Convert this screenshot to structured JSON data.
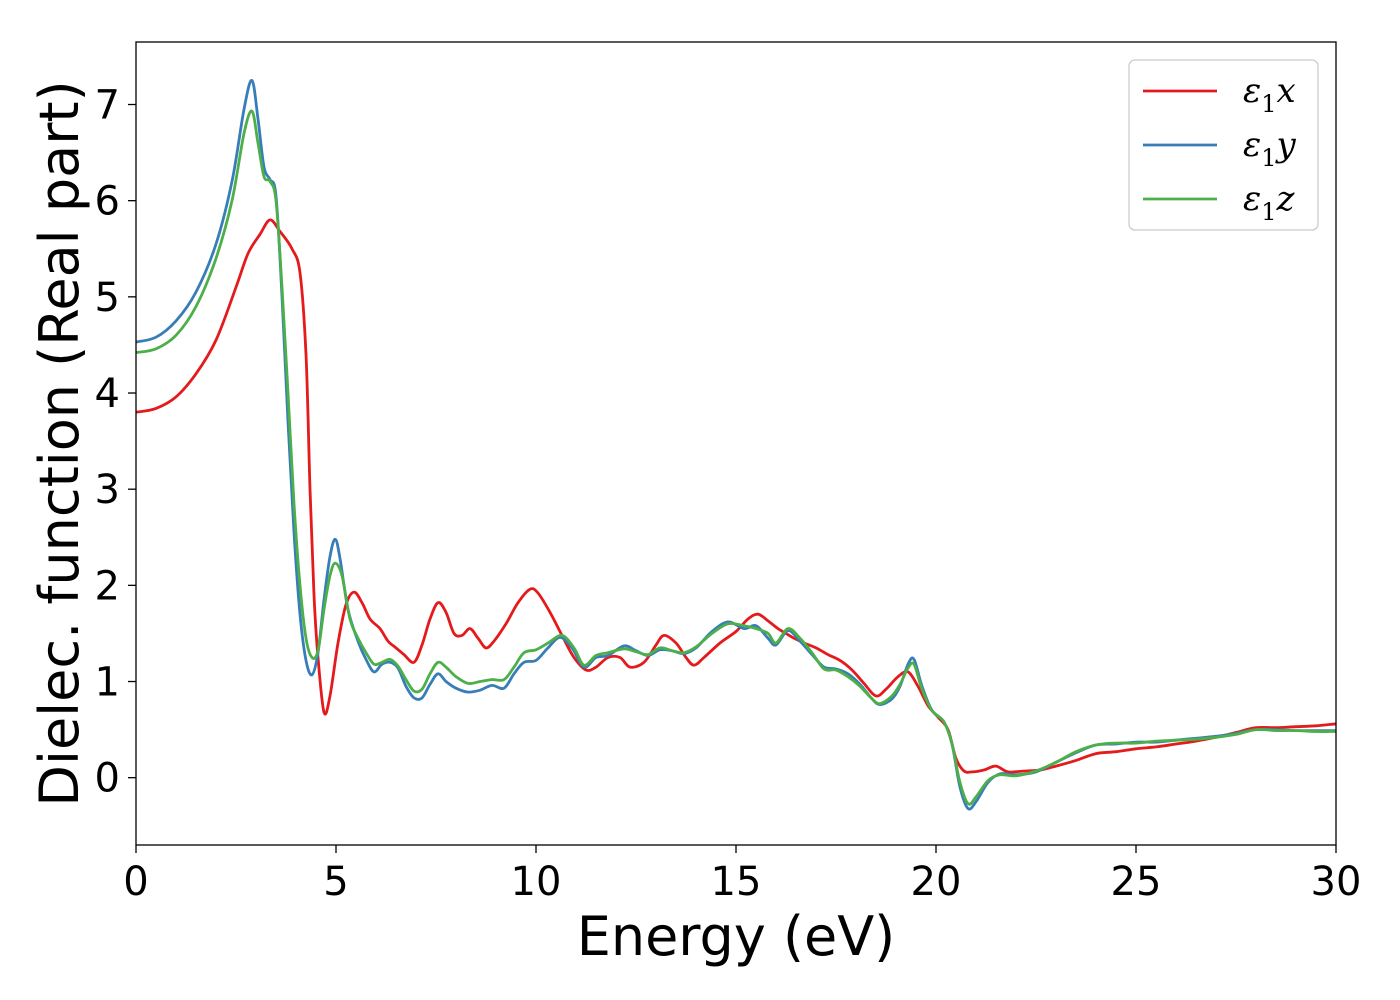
{
  "chart_data": {
    "type": "line",
    "xlabel": "Energy (eV)",
    "ylabel": "Dielec. function (Real part)",
    "xlim": [
      0,
      30
    ],
    "ylim": [
      -0.7,
      7.65
    ],
    "xticks": [
      0,
      5,
      10,
      15,
      20,
      25,
      30
    ],
    "yticks": [
      0,
      1,
      2,
      3,
      4,
      5,
      6,
      7
    ],
    "grid": false,
    "legend_position": "top-right",
    "series": [
      {
        "name": "ε1x",
        "legend": {
          "base": "ε",
          "sub": "1",
          "suffix": "x"
        },
        "color": "#e41a1c",
        "points": [
          [
            0,
            3.8
          ],
          [
            0.5,
            3.84
          ],
          [
            1,
            3.96
          ],
          [
            1.5,
            4.2
          ],
          [
            2,
            4.55
          ],
          [
            2.5,
            5.1
          ],
          [
            2.8,
            5.45
          ],
          [
            3.1,
            5.65
          ],
          [
            3.35,
            5.8
          ],
          [
            3.6,
            5.68
          ],
          [
            3.9,
            5.5
          ],
          [
            4.1,
            5.25
          ],
          [
            4.25,
            4.4
          ],
          [
            4.35,
            3.0
          ],
          [
            4.45,
            1.9
          ],
          [
            4.55,
            1.25
          ],
          [
            4.7,
            0.68
          ],
          [
            4.85,
            0.85
          ],
          [
            5.05,
            1.4
          ],
          [
            5.25,
            1.8
          ],
          [
            5.45,
            1.93
          ],
          [
            5.65,
            1.82
          ],
          [
            5.85,
            1.65
          ],
          [
            6.1,
            1.55
          ],
          [
            6.3,
            1.42
          ],
          [
            6.5,
            1.35
          ],
          [
            6.7,
            1.28
          ],
          [
            6.95,
            1.2
          ],
          [
            7.15,
            1.38
          ],
          [
            7.35,
            1.65
          ],
          [
            7.55,
            1.82
          ],
          [
            7.75,
            1.72
          ],
          [
            7.95,
            1.5
          ],
          [
            8.15,
            1.48
          ],
          [
            8.35,
            1.55
          ],
          [
            8.55,
            1.45
          ],
          [
            8.75,
            1.35
          ],
          [
            8.95,
            1.42
          ],
          [
            9.25,
            1.6
          ],
          [
            9.55,
            1.82
          ],
          [
            9.85,
            1.96
          ],
          [
            10.05,
            1.92
          ],
          [
            10.35,
            1.72
          ],
          [
            10.65,
            1.48
          ],
          [
            10.95,
            1.25
          ],
          [
            11.25,
            1.12
          ],
          [
            11.5,
            1.15
          ],
          [
            11.8,
            1.25
          ],
          [
            12.1,
            1.25
          ],
          [
            12.35,
            1.15
          ],
          [
            12.7,
            1.2
          ],
          [
            13.0,
            1.38
          ],
          [
            13.2,
            1.48
          ],
          [
            13.5,
            1.4
          ],
          [
            13.75,
            1.25
          ],
          [
            13.95,
            1.17
          ],
          [
            14.2,
            1.25
          ],
          [
            14.6,
            1.4
          ],
          [
            15.0,
            1.52
          ],
          [
            15.3,
            1.65
          ],
          [
            15.55,
            1.7
          ],
          [
            15.8,
            1.63
          ],
          [
            16.05,
            1.55
          ],
          [
            16.25,
            1.5
          ],
          [
            16.45,
            1.45
          ],
          [
            16.7,
            1.4
          ],
          [
            17.0,
            1.35
          ],
          [
            17.3,
            1.28
          ],
          [
            17.6,
            1.22
          ],
          [
            17.9,
            1.12
          ],
          [
            18.2,
            0.98
          ],
          [
            18.5,
            0.85
          ],
          [
            18.75,
            0.92
          ],
          [
            19.05,
            1.05
          ],
          [
            19.3,
            1.1
          ],
          [
            19.55,
            0.95
          ],
          [
            19.8,
            0.75
          ],
          [
            20.05,
            0.63
          ],
          [
            20.3,
            0.5
          ],
          [
            20.5,
            0.2
          ],
          [
            20.7,
            0.07
          ],
          [
            20.9,
            0.06
          ],
          [
            21.2,
            0.08
          ],
          [
            21.5,
            0.12
          ],
          [
            21.8,
            0.06
          ],
          [
            22.2,
            0.07
          ],
          [
            22.6,
            0.08
          ],
          [
            23.0,
            0.12
          ],
          [
            23.5,
            0.18
          ],
          [
            24.0,
            0.25
          ],
          [
            24.5,
            0.27
          ],
          [
            25.0,
            0.3
          ],
          [
            25.5,
            0.32
          ],
          [
            26.0,
            0.35
          ],
          [
            26.5,
            0.38
          ],
          [
            27.0,
            0.42
          ],
          [
            27.5,
            0.47
          ],
          [
            28.0,
            0.52
          ],
          [
            28.5,
            0.52
          ],
          [
            29.0,
            0.53
          ],
          [
            29.5,
            0.54
          ],
          [
            30.0,
            0.56
          ]
        ]
      },
      {
        "name": "ε1y",
        "legend": {
          "base": "ε",
          "sub": "1",
          "suffix": "y"
        },
        "color": "#377eb8",
        "points": [
          [
            0,
            4.53
          ],
          [
            0.5,
            4.58
          ],
          [
            1,
            4.75
          ],
          [
            1.5,
            5.05
          ],
          [
            2,
            5.55
          ],
          [
            2.4,
            6.2
          ],
          [
            2.7,
            6.95
          ],
          [
            2.9,
            7.25
          ],
          [
            3.05,
            6.85
          ],
          [
            3.2,
            6.35
          ],
          [
            3.35,
            6.22
          ],
          [
            3.5,
            6.05
          ],
          [
            3.65,
            5.0
          ],
          [
            3.8,
            3.7
          ],
          [
            3.95,
            2.55
          ],
          [
            4.1,
            1.7
          ],
          [
            4.25,
            1.22
          ],
          [
            4.4,
            1.07
          ],
          [
            4.55,
            1.3
          ],
          [
            4.7,
            1.85
          ],
          [
            4.85,
            2.3
          ],
          [
            4.98,
            2.48
          ],
          [
            5.1,
            2.28
          ],
          [
            5.3,
            1.75
          ],
          [
            5.55,
            1.42
          ],
          [
            5.75,
            1.23
          ],
          [
            5.95,
            1.1
          ],
          [
            6.15,
            1.18
          ],
          [
            6.35,
            1.2
          ],
          [
            6.55,
            1.14
          ],
          [
            6.75,
            0.95
          ],
          [
            6.95,
            0.83
          ],
          [
            7.15,
            0.83
          ],
          [
            7.35,
            0.97
          ],
          [
            7.55,
            1.08
          ],
          [
            7.75,
            1.0
          ],
          [
            8.0,
            0.93
          ],
          [
            8.3,
            0.89
          ],
          [
            8.6,
            0.91
          ],
          [
            8.9,
            0.96
          ],
          [
            9.2,
            0.93
          ],
          [
            9.45,
            1.08
          ],
          [
            9.7,
            1.2
          ],
          [
            10.0,
            1.22
          ],
          [
            10.3,
            1.35
          ],
          [
            10.6,
            1.46
          ],
          [
            10.9,
            1.35
          ],
          [
            11.2,
            1.15
          ],
          [
            11.5,
            1.25
          ],
          [
            11.8,
            1.27
          ],
          [
            12.2,
            1.37
          ],
          [
            12.5,
            1.32
          ],
          [
            12.8,
            1.27
          ],
          [
            13.1,
            1.33
          ],
          [
            13.4,
            1.32
          ],
          [
            13.7,
            1.29
          ],
          [
            14.0,
            1.35
          ],
          [
            14.4,
            1.52
          ],
          [
            14.8,
            1.62
          ],
          [
            15.2,
            1.55
          ],
          [
            15.5,
            1.58
          ],
          [
            15.8,
            1.45
          ],
          [
            16.0,
            1.38
          ],
          [
            16.3,
            1.53
          ],
          [
            16.6,
            1.42
          ],
          [
            16.9,
            1.28
          ],
          [
            17.2,
            1.15
          ],
          [
            17.5,
            1.13
          ],
          [
            17.8,
            1.08
          ],
          [
            18.1,
            0.97
          ],
          [
            18.4,
            0.82
          ],
          [
            18.6,
            0.76
          ],
          [
            18.9,
            0.82
          ],
          [
            19.1,
            0.95
          ],
          [
            19.3,
            1.18
          ],
          [
            19.45,
            1.23
          ],
          [
            19.65,
            0.95
          ],
          [
            19.9,
            0.7
          ],
          [
            20.2,
            0.58
          ],
          [
            20.4,
            0.35
          ],
          [
            20.6,
            -0.1
          ],
          [
            20.8,
            -0.32
          ],
          [
            21.0,
            -0.25
          ],
          [
            21.3,
            -0.05
          ],
          [
            21.6,
            0.04
          ],
          [
            22.0,
            0.03
          ],
          [
            22.5,
            0.06
          ],
          [
            23.0,
            0.16
          ],
          [
            23.5,
            0.26
          ],
          [
            24.0,
            0.34
          ],
          [
            24.5,
            0.35
          ],
          [
            25.0,
            0.37
          ],
          [
            25.5,
            0.37
          ],
          [
            26.0,
            0.39
          ],
          [
            26.5,
            0.41
          ],
          [
            27.0,
            0.43
          ],
          [
            27.5,
            0.46
          ],
          [
            28.0,
            0.5
          ],
          [
            28.5,
            0.5
          ],
          [
            29.0,
            0.49
          ],
          [
            29.5,
            0.49
          ],
          [
            30.0,
            0.49
          ]
        ]
      },
      {
        "name": "ε1z",
        "legend": {
          "base": "ε",
          "sub": "1",
          "suffix": "z"
        },
        "color": "#4daf4a",
        "points": [
          [
            0,
            4.42
          ],
          [
            0.5,
            4.46
          ],
          [
            1,
            4.6
          ],
          [
            1.5,
            4.9
          ],
          [
            2,
            5.4
          ],
          [
            2.4,
            6.0
          ],
          [
            2.7,
            6.7
          ],
          [
            2.9,
            6.93
          ],
          [
            3.05,
            6.6
          ],
          [
            3.2,
            6.25
          ],
          [
            3.35,
            6.2
          ],
          [
            3.5,
            6.0
          ],
          [
            3.65,
            5.1
          ],
          [
            3.8,
            4.0
          ],
          [
            3.95,
            2.85
          ],
          [
            4.1,
            2.0
          ],
          [
            4.25,
            1.45
          ],
          [
            4.4,
            1.25
          ],
          [
            4.55,
            1.32
          ],
          [
            4.7,
            1.75
          ],
          [
            4.85,
            2.1
          ],
          [
            4.98,
            2.23
          ],
          [
            5.15,
            2.1
          ],
          [
            5.35,
            1.65
          ],
          [
            5.55,
            1.45
          ],
          [
            5.75,
            1.3
          ],
          [
            5.95,
            1.18
          ],
          [
            6.15,
            1.2
          ],
          [
            6.35,
            1.23
          ],
          [
            6.55,
            1.16
          ],
          [
            6.75,
            1.02
          ],
          [
            6.95,
            0.9
          ],
          [
            7.15,
            0.92
          ],
          [
            7.35,
            1.08
          ],
          [
            7.55,
            1.2
          ],
          [
            7.75,
            1.15
          ],
          [
            8.0,
            1.05
          ],
          [
            8.3,
            0.98
          ],
          [
            8.6,
            1.0
          ],
          [
            8.9,
            1.02
          ],
          [
            9.2,
            1.02
          ],
          [
            9.45,
            1.15
          ],
          [
            9.7,
            1.3
          ],
          [
            10.0,
            1.33
          ],
          [
            10.3,
            1.4
          ],
          [
            10.65,
            1.48
          ],
          [
            10.95,
            1.35
          ],
          [
            11.2,
            1.17
          ],
          [
            11.5,
            1.27
          ],
          [
            11.8,
            1.3
          ],
          [
            12.2,
            1.34
          ],
          [
            12.5,
            1.31
          ],
          [
            12.8,
            1.28
          ],
          [
            13.1,
            1.35
          ],
          [
            13.4,
            1.32
          ],
          [
            13.7,
            1.3
          ],
          [
            14.0,
            1.36
          ],
          [
            14.4,
            1.5
          ],
          [
            14.8,
            1.6
          ],
          [
            15.2,
            1.58
          ],
          [
            15.5,
            1.55
          ],
          [
            15.8,
            1.5
          ],
          [
            16.0,
            1.4
          ],
          [
            16.3,
            1.55
          ],
          [
            16.6,
            1.45
          ],
          [
            16.9,
            1.3
          ],
          [
            17.2,
            1.13
          ],
          [
            17.5,
            1.12
          ],
          [
            17.8,
            1.05
          ],
          [
            18.1,
            0.95
          ],
          [
            18.4,
            0.82
          ],
          [
            18.6,
            0.77
          ],
          [
            18.9,
            0.85
          ],
          [
            19.1,
            0.97
          ],
          [
            19.3,
            1.14
          ],
          [
            19.45,
            1.18
          ],
          [
            19.65,
            0.92
          ],
          [
            19.9,
            0.7
          ],
          [
            20.2,
            0.58
          ],
          [
            20.4,
            0.35
          ],
          [
            20.6,
            -0.05
          ],
          [
            20.8,
            -0.27
          ],
          [
            21.0,
            -0.2
          ],
          [
            21.3,
            -0.03
          ],
          [
            21.6,
            0.03
          ],
          [
            22.0,
            0.02
          ],
          [
            22.5,
            0.07
          ],
          [
            23.0,
            0.16
          ],
          [
            23.5,
            0.27
          ],
          [
            24.0,
            0.34
          ],
          [
            24.5,
            0.36
          ],
          [
            25.0,
            0.36
          ],
          [
            25.5,
            0.38
          ],
          [
            26.0,
            0.39
          ],
          [
            26.5,
            0.4
          ],
          [
            27.0,
            0.42
          ],
          [
            27.5,
            0.45
          ],
          [
            28.0,
            0.5
          ],
          [
            28.5,
            0.49
          ],
          [
            29.0,
            0.49
          ],
          [
            29.5,
            0.48
          ],
          [
            30.0,
            0.48
          ]
        ]
      }
    ]
  }
}
